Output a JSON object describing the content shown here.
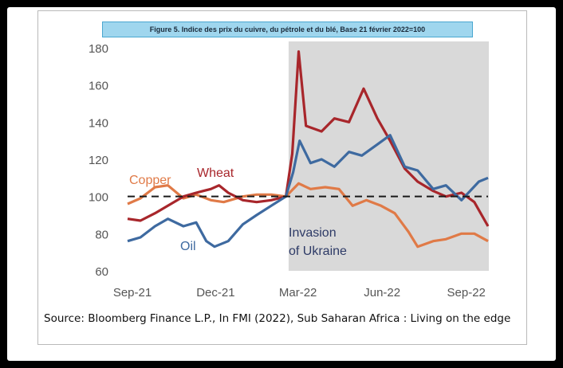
{
  "figure": {
    "title": "Figure 5. Indice des prix du cuivre, du pétrole et du blé, Base 21 février 2022=100",
    "source": "Source: Bloomberg Finance L.P., In FMI (2022), Sub Saharan Africa : Living on the edge"
  },
  "chart_data": {
    "type": "line",
    "title": "Figure 5. Indice des prix du cuivre, du pétrole et du blé, Base 21 février 2022=100",
    "x_ticks": [
      "Sep-21",
      "Dec-21",
      "Mar-22",
      "Jun-22",
      "Sep-22"
    ],
    "x_range": [
      "2021-09-01",
      "2022-09-30"
    ],
    "ylim": [
      60,
      180
    ],
    "y_ticks": [
      60,
      80,
      100,
      120,
      140,
      160,
      180
    ],
    "reference_line": {
      "y": 100,
      "style": "dashed"
    },
    "shaded_region": {
      "from": "2022-02-24",
      "to": "2022-09-30",
      "label": "Invasion of Ukraine"
    },
    "grid": false,
    "legend": "inline labels",
    "colors": {
      "wheat": "#a8262b",
      "oil": "#3e6aa0",
      "copper": "#e07a47",
      "shade": "#d9d9d9"
    },
    "series": [
      {
        "name": "Wheat",
        "dates": [
          "2021-09-01",
          "2021-09-15",
          "2021-10-01",
          "2021-10-15",
          "2021-11-01",
          "2021-11-15",
          "2021-12-01",
          "2021-12-10",
          "2021-12-20",
          "2022-01-05",
          "2022-01-20",
          "2022-02-05",
          "2022-02-21",
          "2022-02-28",
          "2022-03-07",
          "2022-03-15",
          "2022-04-01",
          "2022-04-15",
          "2022-05-01",
          "2022-05-17",
          "2022-06-01",
          "2022-06-15",
          "2022-07-01",
          "2022-07-15",
          "2022-08-01",
          "2022-08-15",
          "2022-09-01",
          "2022-09-15",
          "2022-09-30"
        ],
        "values": [
          88,
          87,
          91,
          95,
          100,
          102,
          104,
          106,
          102,
          98,
          97,
          98,
          100,
          123,
          178,
          138,
          135,
          142,
          140,
          158,
          142,
          130,
          115,
          108,
          103,
          100,
          102,
          97,
          84
        ]
      },
      {
        "name": "Oil",
        "dates": [
          "2021-09-01",
          "2021-09-15",
          "2021-10-01",
          "2021-10-15",
          "2021-11-01",
          "2021-11-15",
          "2021-11-26",
          "2021-12-05",
          "2021-12-20",
          "2022-01-05",
          "2022-01-20",
          "2022-02-05",
          "2022-02-21",
          "2022-03-01",
          "2022-03-08",
          "2022-03-20",
          "2022-04-01",
          "2022-04-15",
          "2022-05-01",
          "2022-05-15",
          "2022-06-01",
          "2022-06-15",
          "2022-07-01",
          "2022-07-15",
          "2022-08-01",
          "2022-08-15",
          "2022-09-01",
          "2022-09-20",
          "2022-09-30"
        ],
        "values": [
          76,
          78,
          84,
          88,
          84,
          86,
          76,
          73,
          76,
          85,
          90,
          95,
          100,
          113,
          130,
          118,
          120,
          116,
          124,
          122,
          128,
          133,
          116,
          114,
          104,
          106,
          98,
          108,
          110
        ]
      },
      {
        "name": "Copper",
        "dates": [
          "2021-09-01",
          "2021-09-15",
          "2021-10-01",
          "2021-10-15",
          "2021-11-01",
          "2021-11-15",
          "2021-12-01",
          "2021-12-15",
          "2022-01-05",
          "2022-01-20",
          "2022-02-05",
          "2022-02-21",
          "2022-03-07",
          "2022-03-20",
          "2022-04-05",
          "2022-04-20",
          "2022-05-05",
          "2022-05-20",
          "2022-06-05",
          "2022-06-20",
          "2022-07-05",
          "2022-07-15",
          "2022-08-01",
          "2022-08-15",
          "2022-09-01",
          "2022-09-15",
          "2022-09-30"
        ],
        "values": [
          96,
          99,
          105,
          106,
          99,
          101,
          98,
          97,
          100,
          101,
          101,
          100,
          107,
          104,
          105,
          104,
          95,
          98,
          95,
          91,
          81,
          73,
          76,
          77,
          80,
          80,
          76
        ]
      }
    ],
    "annotations": [
      {
        "text": "Wheat",
        "series": "Wheat"
      },
      {
        "text": "Copper",
        "series": "Copper"
      },
      {
        "text": "Oil",
        "series": "Oil"
      },
      {
        "text": "Invasion",
        "region": "shaded"
      },
      {
        "text": "of Ukraine",
        "region": "shaded"
      }
    ]
  }
}
